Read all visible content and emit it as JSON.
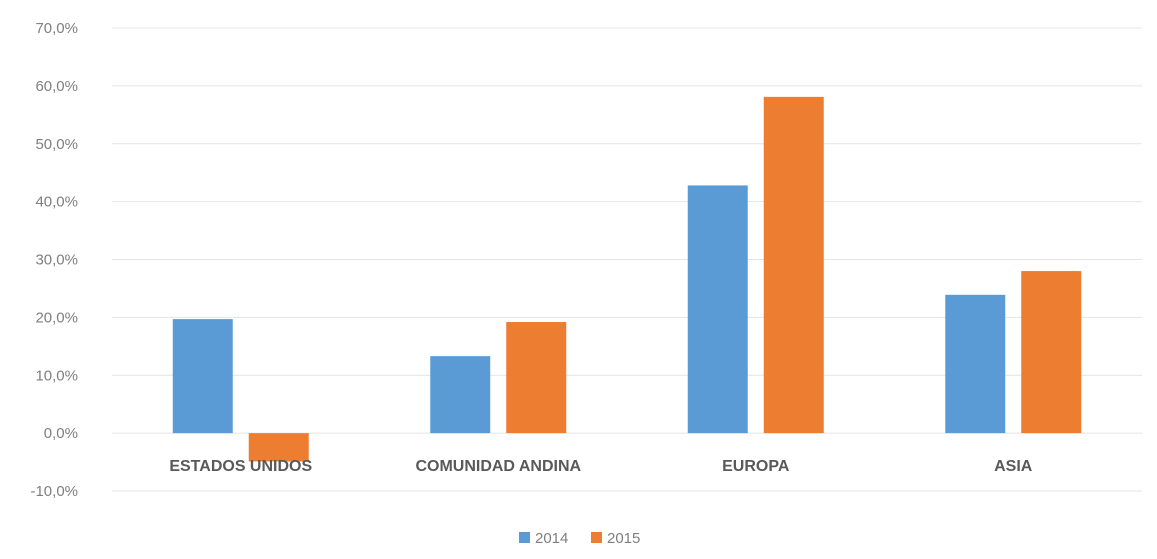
{
  "chart_data": {
    "type": "bar",
    "title": "",
    "xlabel": "",
    "ylabel": "",
    "categories": [
      "ESTADOS UNIDOS",
      "COMUNIDAD ANDINA",
      "EUROPA",
      "ASIA"
    ],
    "series": [
      {
        "name": "2014",
        "color": "#5b9bd5",
        "values": [
          19.7,
          13.3,
          42.8,
          23.9
        ]
      },
      {
        "name": "2015",
        "color": "#ed7d31",
        "values": [
          -4.9,
          19.2,
          58.1,
          28.0
        ]
      }
    ],
    "ylim": [
      -10,
      70
    ],
    "yticks": [
      70,
      60,
      50,
      40,
      30,
      20,
      10,
      0,
      -10
    ],
    "ytick_labels": [
      "70,0%",
      "60,0%",
      "50,0%",
      "40,0%",
      "30,0%",
      "20,0%",
      "10,0%",
      "0,0%",
      "-10,0%"
    ],
    "grid": true,
    "legend_position": "bottom"
  }
}
